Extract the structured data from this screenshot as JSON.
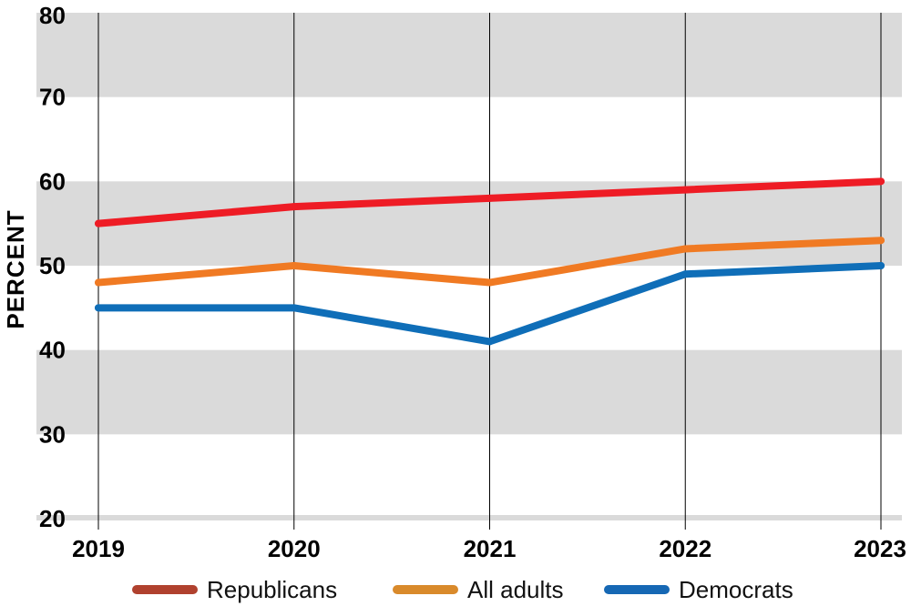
{
  "chart_data": {
    "type": "line",
    "title": "",
    "xlabel": "",
    "ylabel": "PERCENT",
    "categories": [
      "2019",
      "2020",
      "2021",
      "2022",
      "2023"
    ],
    "y_ticks": [
      "20",
      "30",
      "40",
      "50",
      "60",
      "70",
      "80"
    ],
    "ylim": [
      20,
      80
    ],
    "grid": "alternating horizontal bands with vertical lines at each year",
    "legend_position": "bottom",
    "series": [
      {
        "name": "Republicans",
        "color": "#ee1c25",
        "legend_color": "#b0412e",
        "values": [
          55,
          57,
          58,
          59,
          60
        ]
      },
      {
        "name": "All adults",
        "color": "#f07a23",
        "legend_color": "#d98a2b",
        "values": [
          48,
          50,
          48,
          52,
          53
        ]
      },
      {
        "name": "Democrats",
        "color": "#0f6eb8",
        "legend_color": "#1668b4",
        "values": [
          45,
          45,
          41,
          49,
          50
        ]
      }
    ],
    "band_color": "#dadada",
    "gridline_color": "#000000"
  }
}
